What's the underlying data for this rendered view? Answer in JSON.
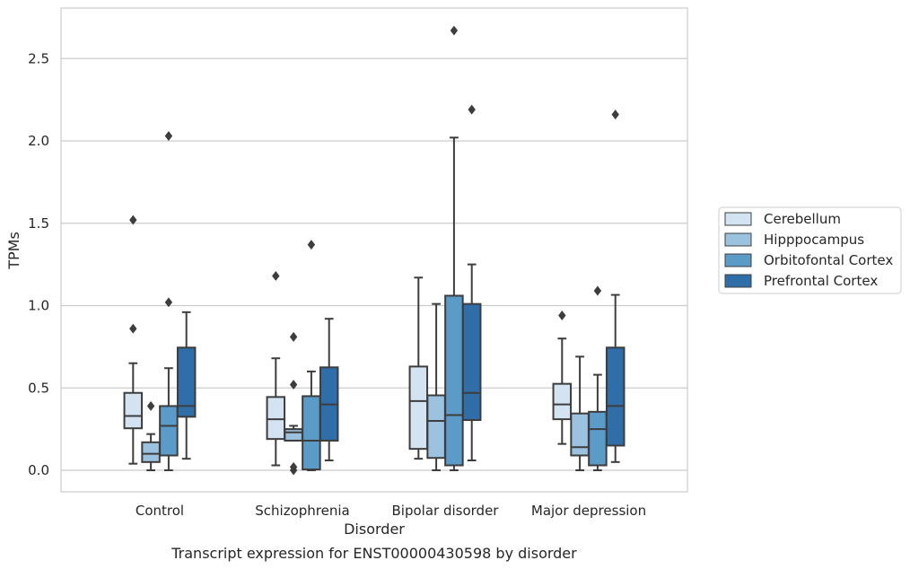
{
  "chart_data": {
    "type": "box",
    "xlabel": "Disorder",
    "ylabel": "TPMs",
    "caption": "Transcript expression for ENST00000430598 by disorder",
    "categories": [
      "Control",
      "Schizophrenia",
      "Bipolar disorder",
      "Major depression"
    ],
    "ylim": [
      -0.13,
      2.82
    ],
    "yticks": [
      0.0,
      0.5,
      1.0,
      1.5,
      2.0,
      2.5
    ],
    "ytick_labels": [
      "0.0",
      "0.5",
      "1.0",
      "1.5",
      "2.0",
      "2.5"
    ],
    "grid": true,
    "legend_position": "right",
    "series": [
      {
        "name": "Cerebellum",
        "color": "#d3e3f2",
        "boxes": [
          {
            "whislo": 0.04,
            "q1": 0.255,
            "med": 0.33,
            "q3": 0.47,
            "whishi": 0.65,
            "fliers": [
              0.86,
              1.52
            ]
          },
          {
            "whislo": 0.03,
            "q1": 0.19,
            "med": 0.31,
            "q3": 0.445,
            "whishi": 0.68,
            "fliers": [
              1.18
            ]
          },
          {
            "whislo": 0.07,
            "q1": 0.13,
            "med": 0.42,
            "q3": 0.63,
            "whishi": 1.17,
            "fliers": []
          },
          {
            "whislo": 0.16,
            "q1": 0.31,
            "med": 0.4,
            "q3": 0.525,
            "whishi": 0.8,
            "fliers": [
              0.94
            ]
          }
        ]
      },
      {
        "name": "Hipppocampus",
        "color": "#9bc2de",
        "boxes": [
          {
            "whislo": 0.0,
            "q1": 0.05,
            "med": 0.1,
            "q3": 0.17,
            "whishi": 0.22,
            "fliers": [
              0.39
            ]
          },
          {
            "whislo": 0.18,
            "q1": 0.18,
            "med": 0.23,
            "q3": 0.25,
            "whishi": 0.27,
            "fliers": [
              0.0,
              0.02,
              0.52,
              0.81
            ]
          },
          {
            "whislo": 0.0,
            "q1": 0.075,
            "med": 0.3,
            "q3": 0.455,
            "whishi": 1.01,
            "fliers": []
          },
          {
            "whislo": 0.0,
            "q1": 0.09,
            "med": 0.14,
            "q3": 0.345,
            "whishi": 0.69,
            "fliers": []
          }
        ]
      },
      {
        "name": "Orbitofontal Cortex",
        "color": "#5b9bc8",
        "boxes": [
          {
            "whislo": 0.0,
            "q1": 0.09,
            "med": 0.27,
            "q3": 0.39,
            "whishi": 0.62,
            "fliers": [
              1.02,
              2.03
            ]
          },
          {
            "whislo": 0.0,
            "q1": 0.005,
            "med": 0.18,
            "q3": 0.45,
            "whishi": 0.6,
            "fliers": [
              1.37
            ]
          },
          {
            "whislo": 0.0,
            "q1": 0.03,
            "med": 0.335,
            "q3": 1.06,
            "whishi": 2.02,
            "fliers": [
              2.67
            ]
          },
          {
            "whislo": 0.0,
            "q1": 0.03,
            "med": 0.25,
            "q3": 0.355,
            "whishi": 0.58,
            "fliers": [
              1.09
            ]
          }
        ]
      },
      {
        "name": "Prefrontal Cortex",
        "color": "#2f6ea8",
        "boxes": [
          {
            "whislo": 0.07,
            "q1": 0.325,
            "med": 0.39,
            "q3": 0.745,
            "whishi": 0.96,
            "fliers": []
          },
          {
            "whislo": 0.06,
            "q1": 0.18,
            "med": 0.4,
            "q3": 0.625,
            "whishi": 0.92,
            "fliers": []
          },
          {
            "whislo": 0.06,
            "q1": 0.305,
            "med": 0.47,
            "q3": 1.01,
            "whishi": 1.25,
            "fliers": [
              2.19
            ]
          },
          {
            "whislo": 0.05,
            "q1": 0.15,
            "med": 0.39,
            "q3": 0.745,
            "whishi": 1.065,
            "fliers": [
              2.16
            ]
          }
        ]
      }
    ]
  }
}
